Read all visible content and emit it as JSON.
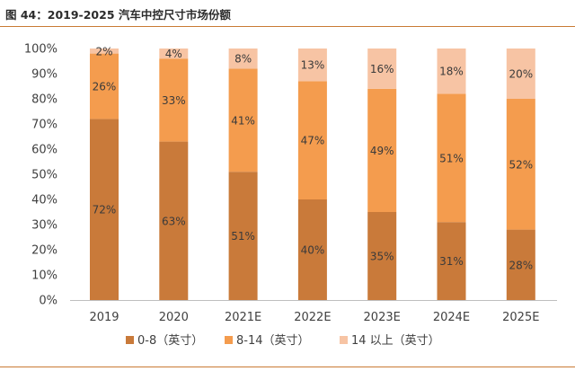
{
  "title": "图 44：2019-2025 汽车中控尺寸市场份额",
  "chart_data": {
    "type": "bar",
    "stacked": true,
    "categories": [
      "2019",
      "2020",
      "2021E",
      "2022E",
      "2023E",
      "2024E",
      "2025E"
    ],
    "series": [
      {
        "name": "0-8（英寸）",
        "color": "#c97a3a",
        "values": [
          72,
          63,
          51,
          40,
          35,
          31,
          28
        ]
      },
      {
        "name": "8-14（英寸）",
        "color": "#f49c4e",
        "values": [
          26,
          33,
          41,
          47,
          49,
          51,
          52
        ]
      },
      {
        "name": "14 以上（英寸）",
        "color": "#f7c4a4",
        "values": [
          2,
          4,
          8,
          13,
          16,
          18,
          20
        ]
      }
    ],
    "data_labels": [
      [
        "72%",
        "63%",
        "51%",
        "40%",
        "35%",
        "31%",
        "28%"
      ],
      [
        "26%",
        "33%",
        "41%",
        "47%",
        "49%",
        "51%",
        "52%"
      ],
      [
        "2%",
        "4%",
        "8%",
        "13%",
        "16%",
        "18%",
        "20%"
      ]
    ],
    "y_ticks": [
      "0%",
      "10%",
      "20%",
      "30%",
      "40%",
      "50%",
      "60%",
      "70%",
      "80%",
      "90%",
      "100%"
    ],
    "ylim": [
      0,
      100
    ],
    "grid": false,
    "legend_position": "bottom",
    "xlabel": "",
    "ylabel": ""
  }
}
